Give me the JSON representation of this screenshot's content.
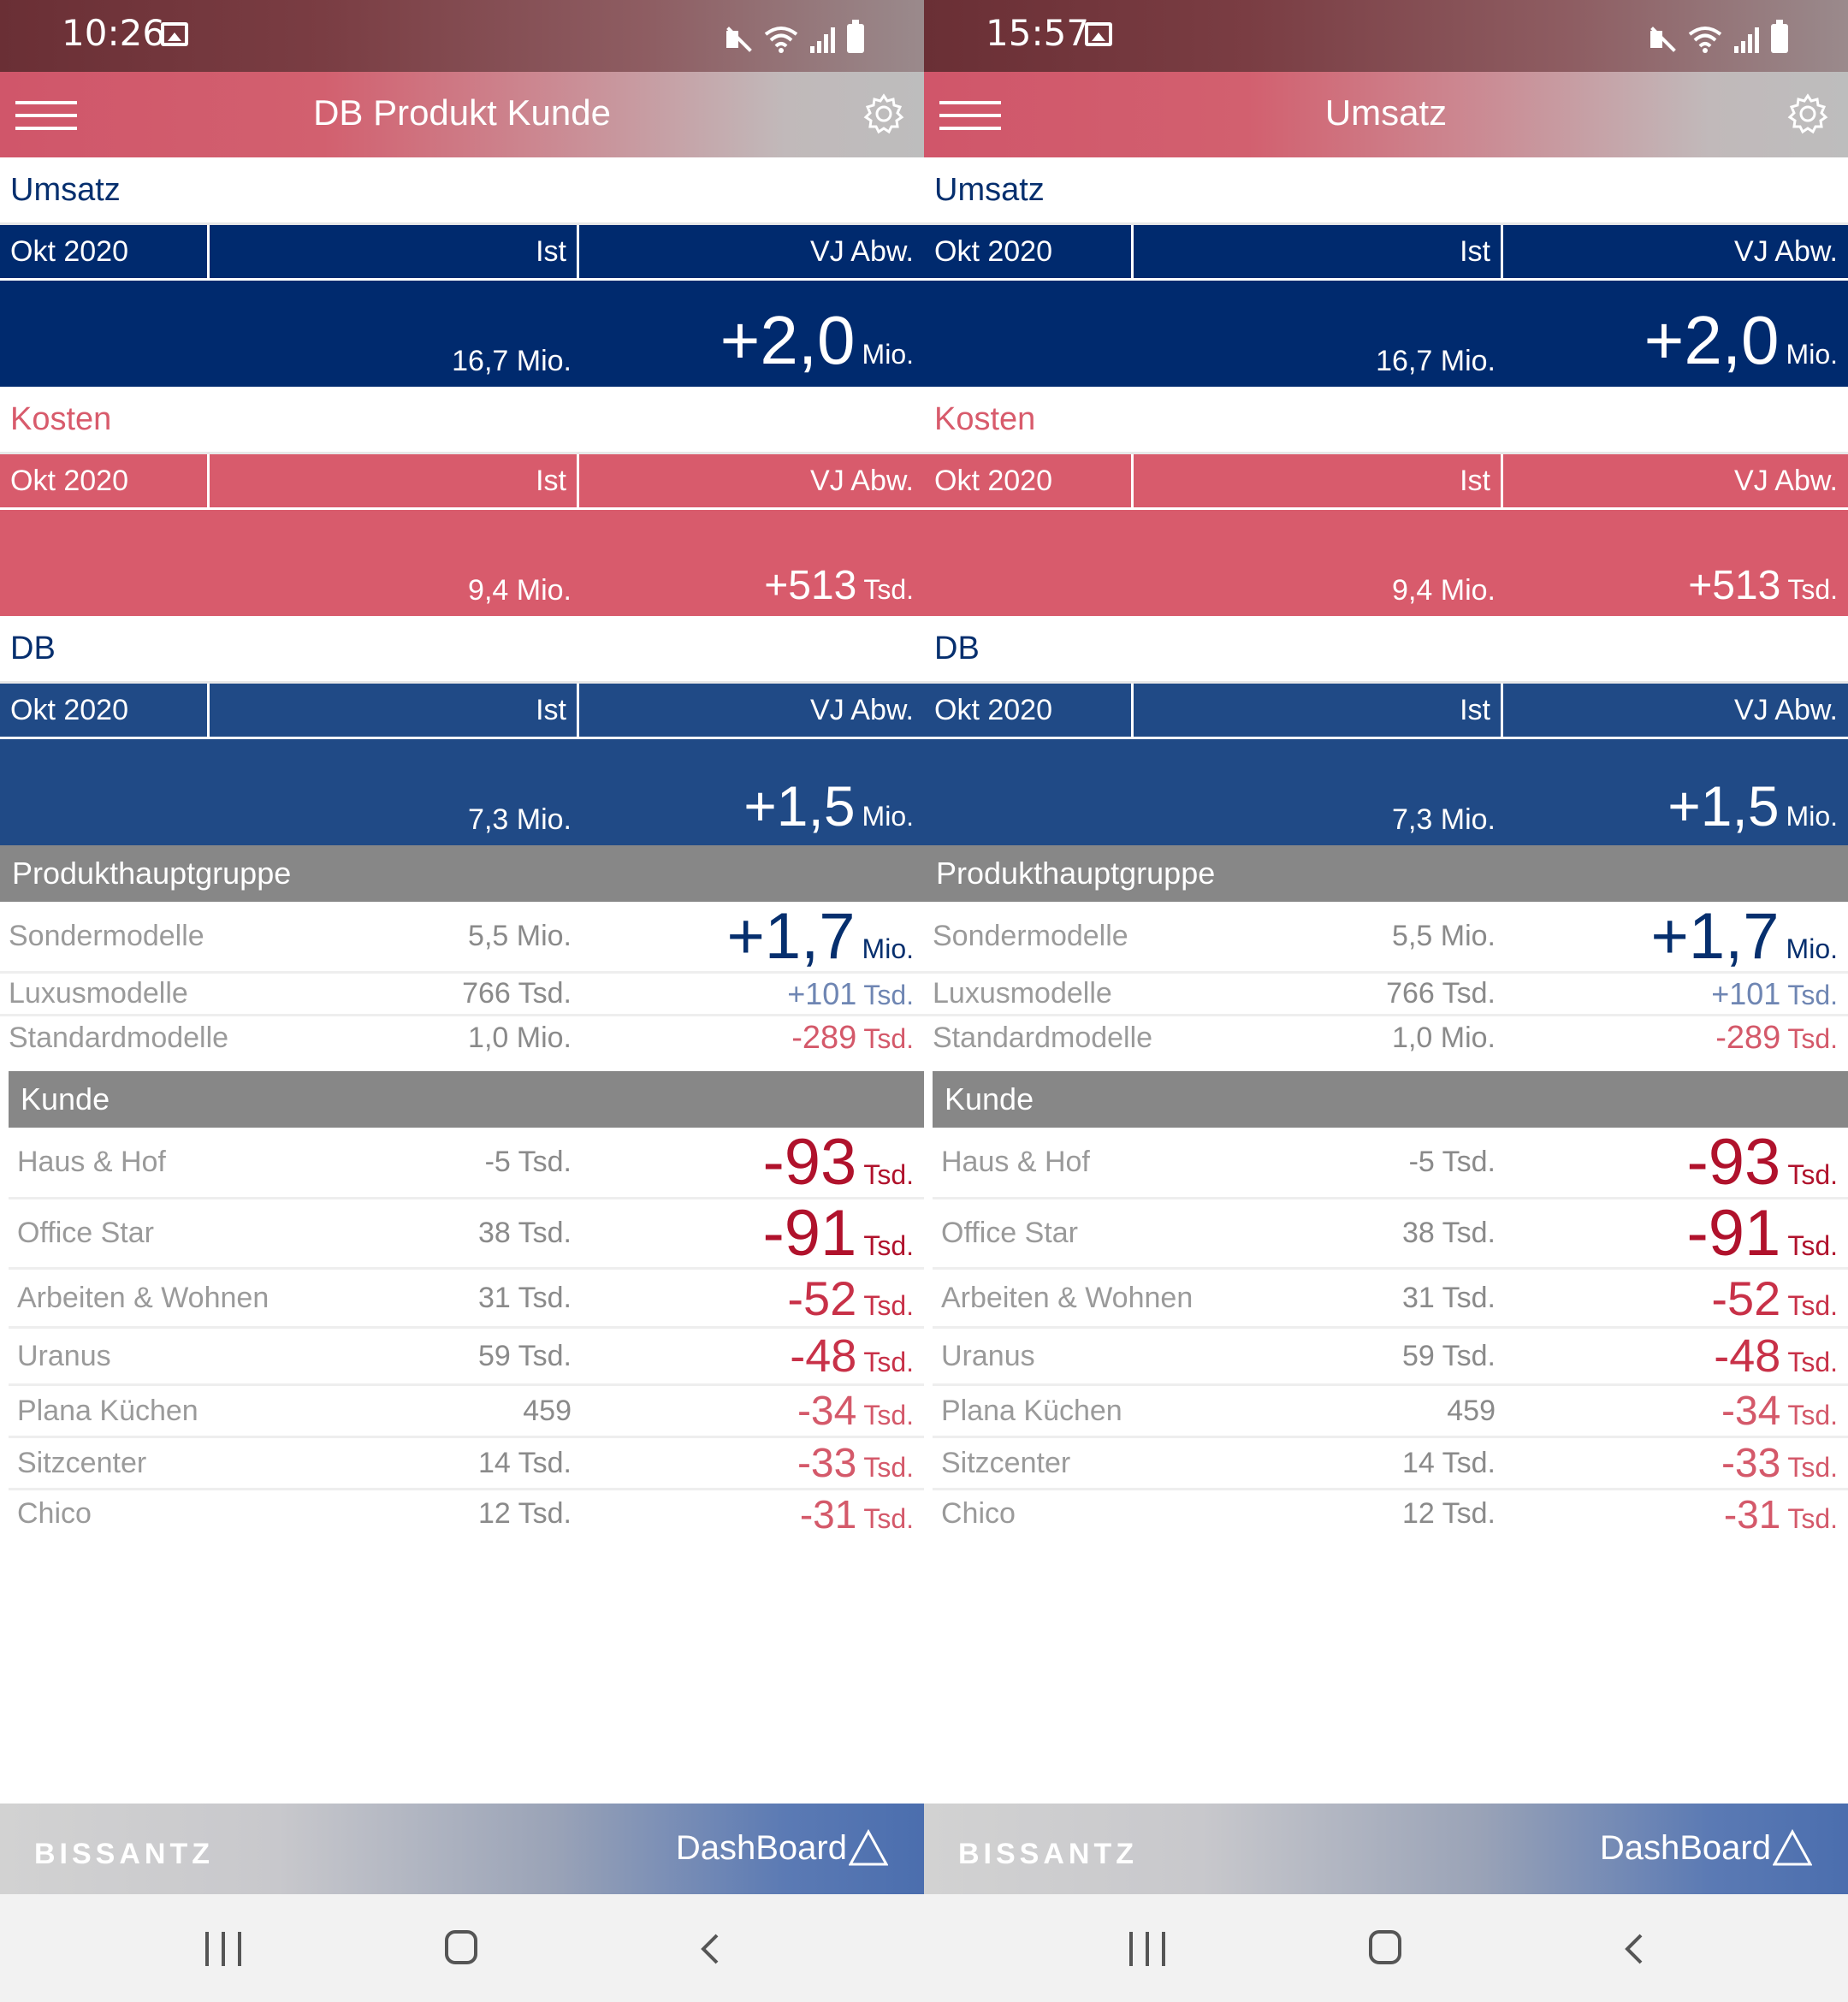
{
  "screens": [
    {
      "status": {
        "time": "10:26"
      },
      "appbar_title": "DB Produkt Kunde",
      "umsatz": {
        "label": "Umsatz",
        "period": "Okt 2020",
        "ist_header": "Ist",
        "vj_header": "VJ Abw.",
        "ist_value": "16,7 Mio.",
        "vj_value": "+2,0",
        "vj_unit": "Mio."
      },
      "kosten": {
        "label": "Kosten",
        "period": "Okt 2020",
        "ist_header": "Ist",
        "vj_header": "VJ Abw.",
        "ist_value": "9,4 Mio.",
        "vj_value": "+513",
        "vj_unit": "Tsd."
      },
      "db": {
        "label": "DB",
        "period": "Okt 2020",
        "ist_header": "Ist",
        "vj_header": "VJ Abw.",
        "ist_value": "7,3 Mio.",
        "vj_value": "+1,5",
        "vj_unit": "Mio."
      },
      "produkt": {
        "header": "Produkthauptgruppe",
        "rows": [
          {
            "name": "Sondermodelle",
            "ist": "5,5 Mio.",
            "vj": "+1,7",
            "unit": "Mio."
          },
          {
            "name": "Luxusmodelle",
            "ist": "766 Tsd.",
            "vj": "+101",
            "unit": "Tsd."
          },
          {
            "name": "Standardmodelle",
            "ist": "1,0 Mio.",
            "vj": "-289",
            "unit": "Tsd."
          }
        ]
      },
      "kunde": {
        "header": "Kunde",
        "rows": [
          {
            "name": "Haus & Hof",
            "ist": "-5 Tsd.",
            "vj": "-93",
            "unit": "Tsd."
          },
          {
            "name": "Office Star",
            "ist": "38 Tsd.",
            "vj": "-91",
            "unit": "Tsd."
          },
          {
            "name": "Arbeiten & Wohnen",
            "ist": "31 Tsd.",
            "vj": "-52",
            "unit": "Tsd."
          },
          {
            "name": "Uranus",
            "ist": "59 Tsd.",
            "vj": "-48",
            "unit": "Tsd."
          },
          {
            "name": "Plana Küchen",
            "ist": "459",
            "vj": "-34",
            "unit": "Tsd."
          },
          {
            "name": "Sitzcenter",
            "ist": "14 Tsd.",
            "vj": "-33",
            "unit": "Tsd."
          },
          {
            "name": "Chico",
            "ist": "12 Tsd.",
            "vj": "-31",
            "unit": "Tsd."
          }
        ]
      },
      "footer": {
        "brand": "BISSANTZ",
        "product": "DashBoard"
      }
    },
    {
      "status": {
        "time": "15:57"
      },
      "appbar_title": "Umsatz",
      "umsatz": {
        "label": "Umsatz",
        "period": "Okt 2020",
        "ist_header": "Ist",
        "vj_header": "VJ Abw.",
        "ist_value": "16,7 Mio.",
        "vj_value": "+2,0",
        "vj_unit": "Mio."
      },
      "kosten": {
        "label": "Kosten",
        "period": "Okt 2020",
        "ist_header": "Ist",
        "vj_header": "VJ Abw.",
        "ist_value": "9,4 Mio.",
        "vj_value": "+513",
        "vj_unit": "Tsd."
      },
      "db": {
        "label": "DB",
        "period": "Okt 2020",
        "ist_header": "Ist",
        "vj_header": "VJ Abw.",
        "ist_value": "7,3 Mio.",
        "vj_value": "+1,5",
        "vj_unit": "Mio."
      },
      "produkt": {
        "header": "Produkthauptgruppe",
        "rows": [
          {
            "name": "Sondermodelle",
            "ist": "5,5 Mio.",
            "vj": "+1,7",
            "unit": "Mio."
          },
          {
            "name": "Luxusmodelle",
            "ist": "766 Tsd.",
            "vj": "+101",
            "unit": "Tsd."
          },
          {
            "name": "Standardmodelle",
            "ist": "1,0 Mio.",
            "vj": "-289",
            "unit": "Tsd."
          }
        ]
      },
      "kunde": {
        "header": "Kunde",
        "rows": [
          {
            "name": "Haus & Hof",
            "ist": "-5 Tsd.",
            "vj": "-93",
            "unit": "Tsd."
          },
          {
            "name": "Office Star",
            "ist": "38 Tsd.",
            "vj": "-91",
            "unit": "Tsd."
          },
          {
            "name": "Arbeiten & Wohnen",
            "ist": "31 Tsd.",
            "vj": "-52",
            "unit": "Tsd."
          },
          {
            "name": "Uranus",
            "ist": "59 Tsd.",
            "vj": "-48",
            "unit": "Tsd."
          },
          {
            "name": "Plana Küchen",
            "ist": "459",
            "vj": "-34",
            "unit": "Tsd."
          },
          {
            "name": "Sitzcenter",
            "ist": "14 Tsd.",
            "vj": "-33",
            "unit": "Tsd."
          },
          {
            "name": "Chico",
            "ist": "12 Tsd.",
            "vj": "-31",
            "unit": "Tsd."
          }
        ]
      },
      "footer": {
        "brand": "BISSANTZ",
        "product": "DashBoard"
      }
    }
  ],
  "icons": {
    "menu": "hamburger-icon",
    "settings": "gear-icon",
    "gallery_notification": "image-icon",
    "mute": "mute-icon",
    "wifi": "wifi-icon",
    "signal": "signal-icon",
    "battery": "battery-icon",
    "brand_logo": "dashboard-triangle-icon",
    "nav_recent": "recent-apps-icon",
    "nav_home": "home-icon",
    "nav_back": "back-icon"
  },
  "colors": {
    "umsatz_navy": "#002a6e",
    "kosten_pink": "#d85b6c",
    "db_blue": "#204a86",
    "section_gray": "#878787",
    "positive_navy": "#062f6e",
    "positive_light_blue": "#6f86b3",
    "negative_red": "#b0122c",
    "negative_pink": "#d4596a"
  }
}
